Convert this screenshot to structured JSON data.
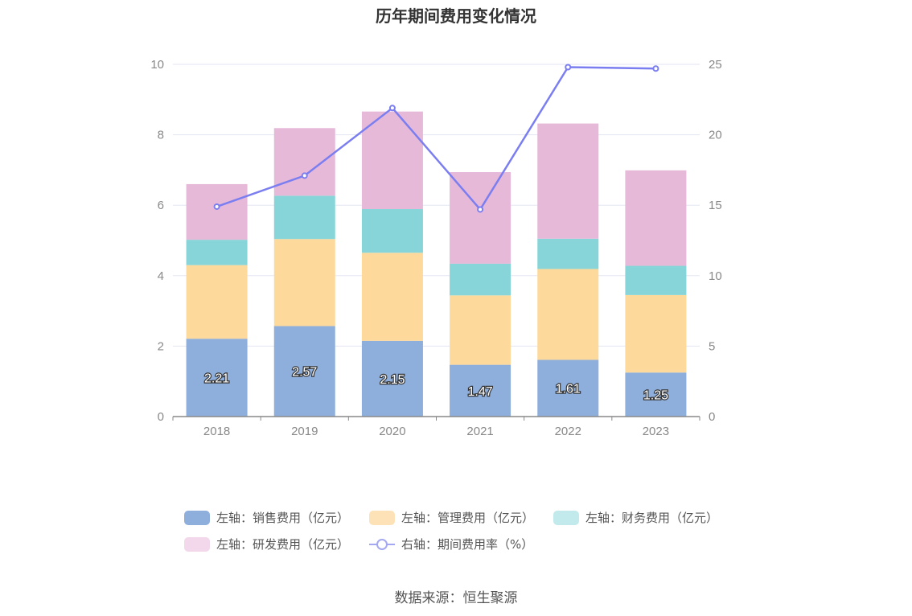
{
  "chart_data": {
    "type": "bar",
    "title": "历年期间费用变化情况",
    "categories": [
      "2018",
      "2019",
      "2020",
      "2021",
      "2022",
      "2023"
    ],
    "left_axis": {
      "ylim": [
        0,
        10
      ],
      "ticks": [
        "0",
        "2",
        "4",
        "6",
        "8",
        "10"
      ]
    },
    "right_axis": {
      "ylim": [
        0,
        25
      ],
      "ticks": [
        "0",
        "5",
        "10",
        "15",
        "20",
        "25"
      ]
    },
    "grid": true,
    "legend_position": "bottom",
    "series": [
      {
        "name": "左轴：销售费用（亿元）",
        "type": "bar",
        "stack": true,
        "color": "#8eaedc",
        "values": [
          2.21,
          2.57,
          2.15,
          1.47,
          1.61,
          1.25
        ],
        "labels": [
          "2.21",
          "2.57",
          "2.15",
          "1.47",
          "1.61",
          "1.25"
        ]
      },
      {
        "name": "左轴：管理费用（亿元）",
        "type": "bar",
        "stack": true,
        "color": "#fed99c",
        "values": [
          2.09,
          2.47,
          2.5,
          1.97,
          2.58,
          2.2
        ]
      },
      {
        "name": "左轴：财务费用（亿元）",
        "type": "bar",
        "stack": true,
        "color": "#87d5d9",
        "values": [
          0.72,
          1.23,
          1.24,
          0.9,
          0.86,
          0.83
        ]
      },
      {
        "name": "左轴：研发费用（亿元）",
        "type": "bar",
        "stack": true,
        "color": "#e6b9d9",
        "values": [
          1.58,
          1.92,
          2.77,
          2.6,
          3.27,
          2.71
        ]
      },
      {
        "name": "右轴：期间费用率（%）",
        "type": "line",
        "axis": "right",
        "color": "#7b7ef0",
        "values": [
          14.9,
          17.1,
          21.9,
          14.7,
          24.8,
          24.7
        ]
      }
    ],
    "source": "数据来源：恒生聚源"
  },
  "legend_colors": {
    "sales": "#8eaedc",
    "admin": "#fde2b8",
    "finance": "#c2eaec",
    "rd": "#f3d8ec"
  }
}
